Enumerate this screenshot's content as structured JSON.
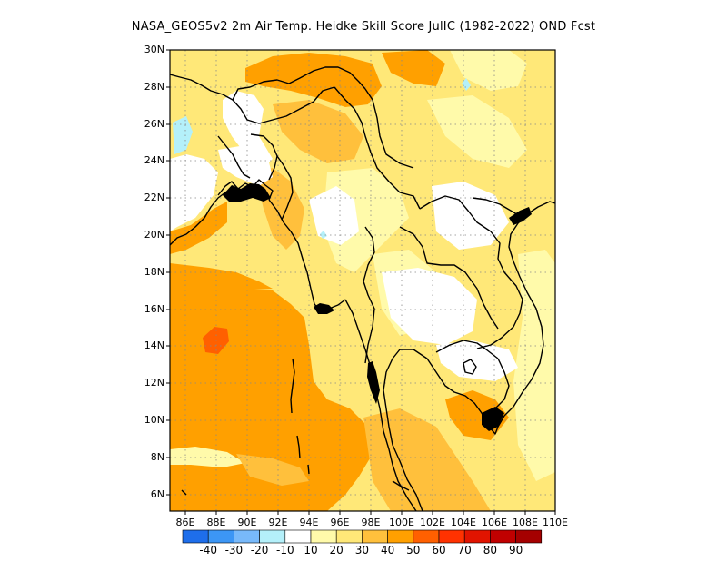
{
  "title": "NASA_GEOS5v2  2m Air Temp. Heidke Skill Score JulIC (1982-2022) OND Fcst",
  "lat_labels": [
    "30N",
    "28N",
    "26N",
    "24N",
    "22N",
    "20N",
    "18N",
    "16N",
    "14N",
    "12N",
    "10N",
    "8N",
    "6N"
  ],
  "lon_labels": [
    "86E",
    "88E",
    "90E",
    "92E",
    "94E",
    "96E",
    "98E",
    "100E",
    "102E",
    "104E",
    "106E",
    "108E",
    "110E"
  ],
  "colorbar": {
    "labels": [
      "-40",
      "-30",
      "-20",
      "-10",
      "10",
      "20",
      "30",
      "40",
      "50",
      "60",
      "70",
      "80",
      "90"
    ],
    "colors": [
      "#1e6eeb",
      "#3c96f5",
      "#78b9fa",
      "#b4f0fa",
      "#ffffff",
      "#fffaaa",
      "#ffe878",
      "#ffc03c",
      "#ffa000",
      "#ff6000",
      "#ff3200",
      "#e11400",
      "#c00000",
      "#a50000"
    ]
  },
  "palette": {
    "white": "#ffffff",
    "s10": "#fffaaa",
    "s20": "#ffe878",
    "s30": "#ffc03c",
    "s40": "#ffa000",
    "s50": "#ff6000",
    "neg10": "#b4f0fa"
  }
}
